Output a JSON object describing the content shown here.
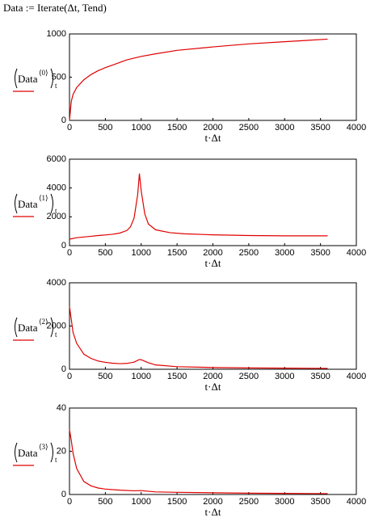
{
  "header": "Data := Iterate(Δt, Tend)",
  "chart_data": [
    {
      "type": "line",
      "xlabel": "t·Δt",
      "ylabel": {
        "base": "Data",
        "sup": "⟨0⟩",
        "sub": "t"
      },
      "x": [
        0,
        25,
        50,
        100,
        200,
        300,
        400,
        500,
        600,
        700,
        800,
        900,
        1000,
        1200,
        1500,
        2000,
        2500,
        3000,
        3600
      ],
      "series": [
        {
          "color": "#e00000",
          "values": [
            0,
            220,
            300,
            380,
            470,
            530,
            575,
            610,
            640,
            670,
            700,
            720,
            740,
            770,
            810,
            850,
            885,
            910,
            940
          ]
        }
      ],
      "xlim": [
        0,
        4000
      ],
      "xticks": [
        0,
        500,
        1000,
        1500,
        2000,
        2500,
        3000,
        3500,
        4000
      ],
      "ylim": [
        0,
        1000
      ],
      "yticks": [
        0,
        500,
        1000
      ]
    },
    {
      "type": "line",
      "xlabel": "t·Δt",
      "ylabel": {
        "base": "Data",
        "sup": "⟨1⟩",
        "sub": "t"
      },
      "x": [
        0,
        100,
        200,
        300,
        400,
        500,
        600,
        700,
        800,
        850,
        900,
        950,
        975,
        1000,
        1050,
        1100,
        1200,
        1400,
        1600,
        2000,
        2500,
        3000,
        3600
      ],
      "series": [
        {
          "color": "#e00000",
          "values": [
            450,
            550,
            600,
            650,
            700,
            740,
            790,
            870,
            1050,
            1300,
            1900,
            3500,
            5000,
            3800,
            2200,
            1500,
            1100,
            900,
            820,
            750,
            700,
            680,
            680
          ]
        }
      ],
      "xlim": [
        0,
        4000
      ],
      "xticks": [
        0,
        500,
        1000,
        1500,
        2000,
        2500,
        3000,
        3500,
        4000
      ],
      "ylim": [
        0,
        6000
      ],
      "yticks": [
        0,
        2000,
        4000,
        6000
      ]
    },
    {
      "type": "line",
      "xlabel": "t·Δt",
      "ylabel": {
        "base": "Data",
        "sup": "⟨2⟩",
        "sub": "t"
      },
      "x": [
        0,
        25,
        50,
        100,
        200,
        300,
        400,
        500,
        600,
        700,
        800,
        900,
        975,
        1000,
        1100,
        1200,
        1500,
        2000,
        2500,
        3000,
        3600
      ],
      "series": [
        {
          "color": "#e00000",
          "values": [
            2900,
            2300,
            1700,
            1200,
            700,
            500,
            380,
            320,
            280,
            260,
            270,
            330,
            450,
            440,
            300,
            200,
            120,
            80,
            60,
            50,
            40
          ]
        }
      ],
      "xlim": [
        0,
        4000
      ],
      "xticks": [
        0,
        500,
        1000,
        1500,
        2000,
        2500,
        3000,
        3500,
        4000
      ],
      "ylim": [
        0,
        4000
      ],
      "yticks": [
        0,
        2000,
        4000
      ]
    },
    {
      "type": "line",
      "xlabel": "t·Δt",
      "ylabel": {
        "base": "Data",
        "sup": "⟨3⟩",
        "sub": "t"
      },
      "x": [
        0,
        25,
        50,
        100,
        200,
        300,
        400,
        500,
        700,
        900,
        1000,
        1200,
        1500,
        2000,
        2500,
        3000,
        3600
      ],
      "series": [
        {
          "color": "#e00000",
          "values": [
            30,
            25,
            19,
            12,
            6,
            4,
            3,
            2.5,
            2,
            1.7,
            1.8,
            1.2,
            1,
            0.8,
            0.6,
            0.5,
            0.4
          ]
        }
      ],
      "xlim": [
        0,
        4000
      ],
      "xticks": [
        0,
        500,
        1000,
        1500,
        2000,
        2500,
        3000,
        3500,
        4000
      ],
      "ylim": [
        0,
        40
      ],
      "yticks": [
        0,
        20,
        40
      ]
    }
  ]
}
